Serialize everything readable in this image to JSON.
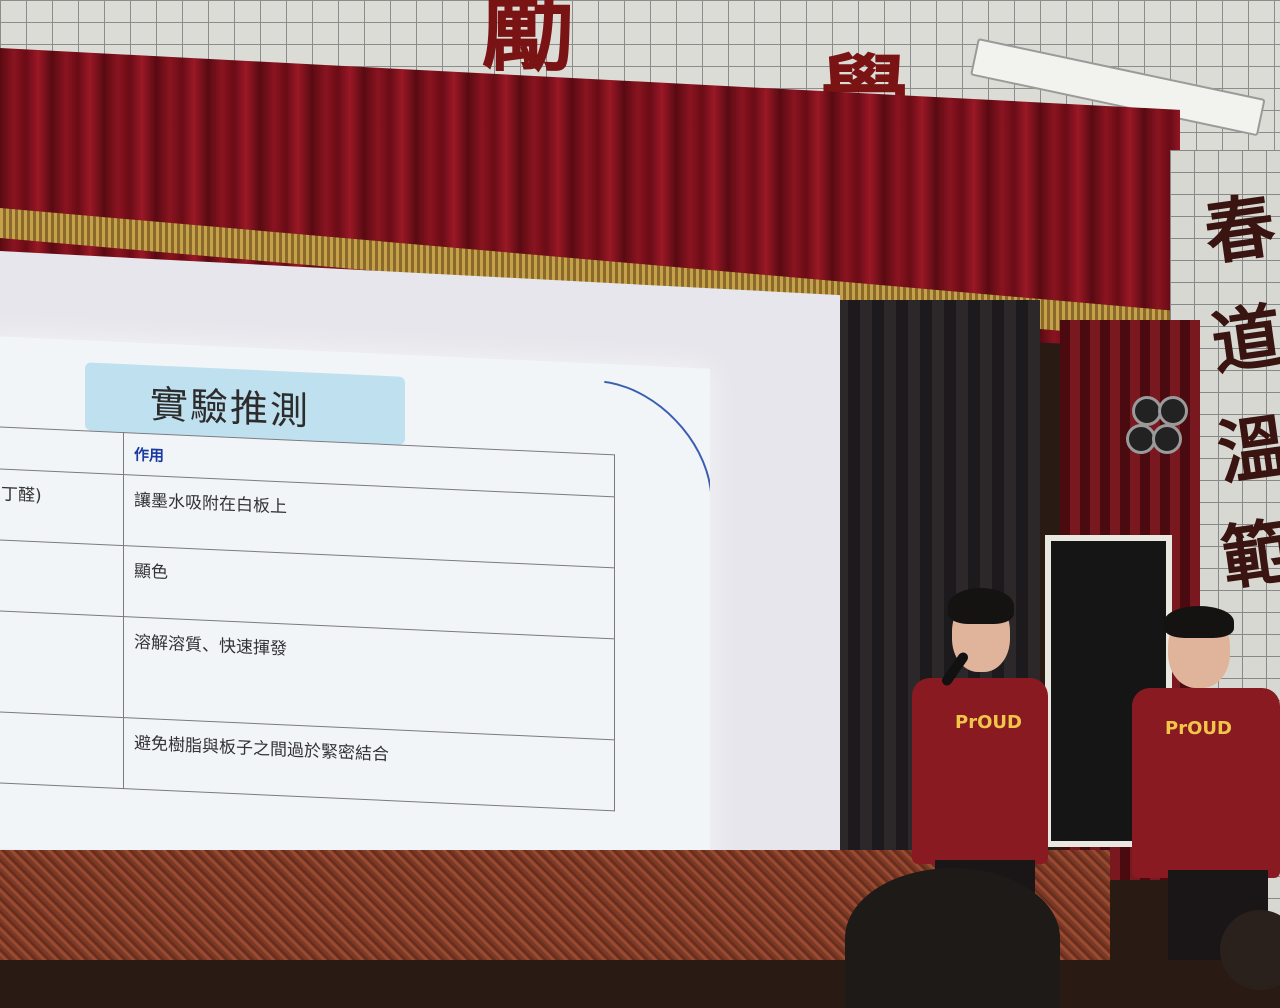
{
  "wall": {
    "chars": [
      "勵",
      "學"
    ],
    "side_chars": [
      "春",
      "道",
      "溫",
      "範"
    ]
  },
  "slide": {
    "title": "實驗推測",
    "header_col2": "作用",
    "rows": [
      {
        "col1": "丁醛)",
        "col2": "讓墨水吸附在白板上"
      },
      {
        "col1": "",
        "col2": "顯色"
      },
      {
        "col1": "",
        "col2": "溶解溶質、快速揮發"
      },
      {
        "col1": "",
        "col2": "避免樹脂與板子之間過於緊密結合"
      }
    ]
  },
  "presenters": {
    "shirt_label_1": "PrOUD",
    "shirt_label_2": "PrOUD"
  },
  "colors": {
    "curtain": "#8a1420",
    "fringe": "#c7a04a",
    "shirt": "#8a1a22",
    "slide_header": "#1a3aa0"
  }
}
